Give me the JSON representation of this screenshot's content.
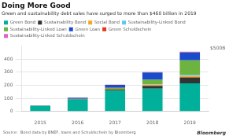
{
  "chart_data": {
    "type": "bar",
    "stacked": true,
    "title": "Doing More Good",
    "subtitle": "Green and sustainability debt sales have surged to more than $460 billion in 2019",
    "ylabel": "$500B",
    "annotations": [
      "Source:  Bond data by BNEF, loans and Schuldschein by Bloomberg",
      "Bloomberg"
    ],
    "categories": [
      "2015",
      "2016",
      "2017",
      "2018",
      "2019"
    ],
    "series": [
      {
        "name": "Green Bond",
        "color": "#00b09b",
        "values": [
          42,
          90,
          160,
          175,
          215
        ]
      },
      {
        "name": "Sustainability Bond",
        "color": "#333333",
        "values": [
          2,
          3,
          8,
          20,
          45
        ]
      },
      {
        "name": "Social Bond",
        "color": "#f5a623",
        "values": [
          1,
          2,
          5,
          10,
          12
        ]
      },
      {
        "name": "Sustainability-Linked Bond",
        "color": "#5bc8f5",
        "values": [
          0,
          0,
          0,
          2,
          8
        ]
      },
      {
        "name": "Sustainability-Linked Loan",
        "color": "#6db33f",
        "values": [
          0,
          2,
          8,
          35,
          110
        ]
      },
      {
        "name": "Green Loan",
        "color": "#1a4bcc",
        "values": [
          2,
          8,
          22,
          55,
          60
        ]
      },
      {
        "name": "Green Schuldschein",
        "color": "#e8341c",
        "values": [
          0,
          1,
          2,
          3,
          4
        ]
      },
      {
        "name": "Sustainability-Linked Schuldschein",
        "color": "#d966cc",
        "values": [
          0,
          0,
          0,
          1,
          3
        ]
      }
    ],
    "ylim": [
      0,
      500
    ],
    "yticks": [
      0,
      100,
      200,
      300,
      400
    ],
    "grid": true,
    "legend": "upper left"
  }
}
